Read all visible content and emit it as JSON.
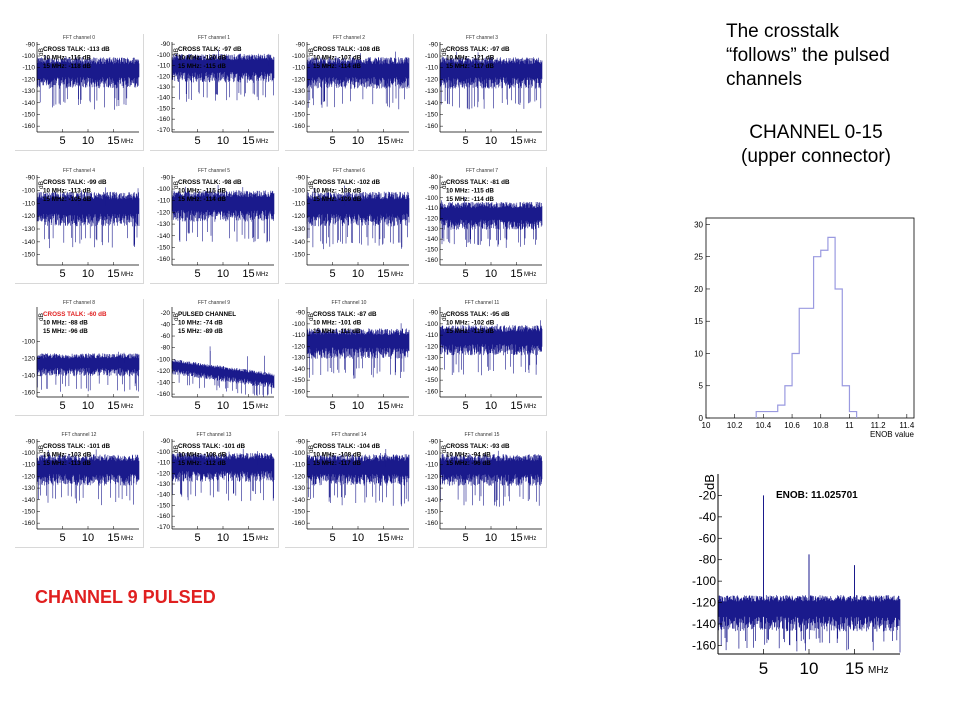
{
  "top_text": {
    "line1": "The crosstalk",
    "line2": "“follows” the pulsed",
    "line3": "channels"
  },
  "channel_range": {
    "line1": "CHANNEL 0-15",
    "line2": "(upper connector)"
  },
  "pulsed_label": "CHANNEL 9 PULSED",
  "colors": {
    "trace": "#1a1a8c",
    "pulsed_red": "#e02020",
    "hist": "#9a9ae0"
  },
  "chart_data": [
    {
      "type": "line",
      "panels": [
        {
          "title": "FFT channel 0",
          "lines": [
            "CROSS TALK: -113 dB",
            "10 MHz: -116 dB",
            "15 MHz: -118 dB"
          ],
          "yticks": [
            "-90",
            "-100",
            "-110",
            "-120",
            "-130",
            "-140",
            "-150",
            "-160"
          ],
          "ylim": [
            -165,
            -88
          ],
          "noise": -112,
          "first_red": false,
          "pulsed": false
        },
        {
          "title": "FFT channel 1",
          "lines": [
            "CROSS TALK: -97 dB",
            "10 MHz: -120 dB",
            "15 MHz: -115 dB"
          ],
          "yticks": [
            "-90",
            "-100",
            "-110",
            "-120",
            "-130",
            "-140",
            "-150",
            "-160",
            "-170"
          ],
          "ylim": [
            -172,
            -88
          ],
          "noise": -110,
          "first_red": false,
          "pulsed": false
        },
        {
          "title": "FFT channel 2",
          "lines": [
            "CROSS TALK: -108 dB",
            "10 MHz: -107 dB",
            "15 MHz: -114 dB"
          ],
          "yticks": [
            "-90",
            "-100",
            "-110",
            "-120",
            "-130",
            "-140",
            "-150",
            "-160"
          ],
          "ylim": [
            -165,
            -88
          ],
          "noise": -112,
          "first_red": false,
          "pulsed": false
        },
        {
          "title": "FFT channel 3",
          "lines": [
            "CROSS TALK: -97 dB",
            "10 MHz: -121 dB",
            "15 MHz: -117 dB"
          ],
          "yticks": [
            "-90",
            "-100",
            "-110",
            "-120",
            "-130",
            "-140",
            "-150",
            "-160"
          ],
          "ylim": [
            -165,
            -88
          ],
          "noise": -112,
          "first_red": false,
          "pulsed": false
        },
        {
          "title": "FFT channel 4",
          "lines": [
            "CROSS TALK: -99 dB",
            "10 MHz: -113 dB",
            "15 MHz: -105 dB"
          ],
          "yticks": [
            "-90",
            "-100",
            "-110",
            "-120",
            "-130",
            "-140",
            "-150"
          ],
          "ylim": [
            -158,
            -88
          ],
          "noise": -112,
          "first_red": false,
          "pulsed": false
        },
        {
          "title": "FFT channel 5",
          "lines": [
            "CROSS TALK: -98 dB",
            "10 MHz: -115 dB",
            "15 MHz: -114 dB"
          ],
          "yticks": [
            "-90",
            "-100",
            "-110",
            "-120",
            "-130",
            "-140",
            "-150",
            "-160"
          ],
          "ylim": [
            -165,
            -88
          ],
          "noise": -112,
          "first_red": false,
          "pulsed": false
        },
        {
          "title": "FFT channel 6",
          "lines": [
            "CROSS TALK: -102 dB",
            "10 MHz: -108 dB",
            "15 MHz: -109 dB"
          ],
          "yticks": [
            "-90",
            "-100",
            "-110",
            "-120",
            "-130",
            "-140",
            "-150"
          ],
          "ylim": [
            -158,
            -88
          ],
          "noise": -112,
          "first_red": false,
          "pulsed": false
        },
        {
          "title": "FFT channel 7",
          "lines": [
            "CROSS TALK: -81 dB",
            "10 MHz: -115 dB",
            "15 MHz: -114 dB"
          ],
          "yticks": [
            "-80",
            "-90",
            "-100",
            "-110",
            "-120",
            "-130",
            "-140",
            "-150",
            "-160"
          ],
          "ylim": [
            -165,
            -78
          ],
          "noise": -115,
          "first_red": false,
          "pulsed": false
        },
        {
          "title": "FFT channel 8",
          "lines": [
            "CROSS TALK: -60 dB",
            "10 MHz: -88 dB",
            "15 MHz: -96 dB"
          ],
          "yticks": [
            "-100",
            "-120",
            "-140",
            "-160"
          ],
          "ylim": [
            -165,
            -60
          ],
          "noise": -125,
          "first_red": true,
          "pulsed": false
        },
        {
          "title": "FFT channel 9",
          "lines": [
            "PULSED CHANNEL",
            "10 MHz: -74 dB",
            "15 MHz: -89 dB"
          ],
          "yticks": [
            "-20",
            "-40",
            "-60",
            "-80",
            "-100",
            "-120",
            "-140",
            "-160"
          ],
          "ylim": [
            -165,
            -10
          ],
          "noise": -125,
          "first_red": false,
          "pulsed": true
        },
        {
          "title": "FFT channel 10",
          "lines": [
            "CROSS TALK: -87 dB",
            "10 MHz: -101 dB",
            "15 MHz: -111 dB"
          ],
          "yticks": [
            "-90",
            "-100",
            "-110",
            "-120",
            "-130",
            "-140",
            "-150",
            "-160"
          ],
          "ylim": [
            -165,
            -85
          ],
          "noise": -115,
          "first_red": false,
          "pulsed": false
        },
        {
          "title": "FFT channel 11",
          "lines": [
            "CROSS TALK: -95 dB",
            "10 MHz: -102 dB",
            "15 MHz: -115 dB"
          ],
          "yticks": [
            "-90",
            "-100",
            "-110",
            "-120",
            "-130",
            "-140",
            "-150",
            "-160"
          ],
          "ylim": [
            -165,
            -85
          ],
          "noise": -112,
          "first_red": false,
          "pulsed": false
        },
        {
          "title": "FFT channel 12",
          "lines": [
            "CROSS TALK: -101 dB",
            "10 MHz: -103 dB",
            "15 MHz: -113 dB"
          ],
          "yticks": [
            "-90",
            "-100",
            "-110",
            "-120",
            "-130",
            "-140",
            "-150",
            "-160"
          ],
          "ylim": [
            -165,
            -88
          ],
          "noise": -112,
          "first_red": false,
          "pulsed": false
        },
        {
          "title": "FFT channel 13",
          "lines": [
            "CROSS TALK: -101 dB",
            "10 MHz: -108 dB",
            "15 MHz: -112 dB"
          ],
          "yticks": [
            "-90",
            "-100",
            "-110",
            "-120",
            "-130",
            "-140",
            "-150",
            "-160",
            "-170"
          ],
          "ylim": [
            -172,
            -88
          ],
          "noise": -112,
          "first_red": false,
          "pulsed": false
        },
        {
          "title": "FFT channel 14",
          "lines": [
            "CROSS TALK: -104 dB",
            "10 MHz: -108 dB",
            "15 MHz: -117 dB"
          ],
          "yticks": [
            "-90",
            "-100",
            "-110",
            "-120",
            "-130",
            "-140",
            "-150",
            "-160"
          ],
          "ylim": [
            -165,
            -88
          ],
          "noise": -112,
          "first_red": false,
          "pulsed": false
        },
        {
          "title": "FFT channel 15",
          "lines": [
            "CROSS TALK: -93 dB",
            "10 MHz: -94 dB",
            "15 MHz: -96 dB"
          ],
          "yticks": [
            "-90",
            "-100",
            "-110",
            "-120",
            "-130",
            "-140",
            "-150",
            "-160"
          ],
          "ylim": [
            -165,
            -88
          ],
          "noise": -112,
          "first_red": false,
          "pulsed": false
        }
      ],
      "xticks": [
        "5",
        "10",
        "15"
      ],
      "xunit": "MHz",
      "ylabel": "dB"
    },
    {
      "type": "bar",
      "xlabel": "ENOB value",
      "xticks": [
        "10",
        "10.2",
        "10.4",
        "10.6",
        "10.8",
        "11",
        "11.2",
        "11.4"
      ],
      "yticks": [
        "0",
        "5",
        "10",
        "15",
        "20",
        "25",
        "30"
      ],
      "xlim": [
        10,
        11.45
      ],
      "ylim": [
        0,
        31
      ],
      "bin_edges": [
        10.35,
        10.4,
        10.45,
        10.5,
        10.55,
        10.6,
        10.65,
        10.7,
        10.75,
        10.8,
        10.85,
        10.9,
        10.95,
        11.0,
        11.05
      ],
      "values": [
        1,
        1,
        1,
        2,
        5,
        10,
        17,
        17,
        25,
        26,
        28,
        20,
        5,
        1
      ]
    },
    {
      "type": "line",
      "title": "ENOB: 11.025701",
      "ylabel": "dB",
      "yticks": [
        "-20",
        "-40",
        "-60",
        "-80",
        "-100",
        "-120",
        "-140",
        "-160"
      ],
      "xticks": [
        "5",
        "10",
        "15"
      ],
      "xunit": "MHz",
      "ylim": [
        -168,
        0
      ],
      "xlim": [
        0,
        20
      ],
      "noise_db": -125,
      "peaks": [
        [
          5,
          -20
        ],
        [
          10,
          -75
        ],
        [
          15,
          -85
        ]
      ]
    }
  ]
}
